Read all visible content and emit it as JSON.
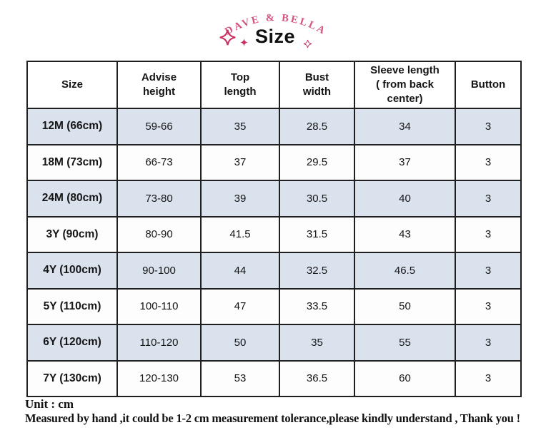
{
  "brand": {
    "name": "DAVE & BELLA"
  },
  "title": "Size",
  "icons": {
    "left_large": "sparkle-outline",
    "left_small": "sparkle-filled",
    "right_small": "sparkle-outline"
  },
  "colors": {
    "brand_pink": "#d6537f",
    "sparkle_pink": "#c9305f",
    "row_alt_blue": "#dae2ee",
    "border_dark": "#1f1f1f"
  },
  "table": {
    "columns": [
      "Size",
      "Advise\nheight",
      "Top\nlength",
      "Bust\nwidth",
      "Sleeve length\n( from back\ncenter)",
      "Button"
    ],
    "rows": [
      [
        "12M (66cm)",
        "59-66",
        "35",
        "28.5",
        "34",
        "3"
      ],
      [
        "18M (73cm)",
        "66-73",
        "37",
        "29.5",
        "37",
        "3"
      ],
      [
        "24M (80cm)",
        "73-80",
        "39",
        "30.5",
        "40",
        "3"
      ],
      [
        "3Y (90cm)",
        "80-90",
        "41.5",
        "31.5",
        "43",
        "3"
      ],
      [
        "4Y (100cm)",
        "90-100",
        "44",
        "32.5",
        "46.5",
        "3"
      ],
      [
        "5Y (110cm)",
        "100-110",
        "47",
        "33.5",
        "50",
        "3"
      ],
      [
        "6Y (120cm)",
        "110-120",
        "50",
        "35",
        "55",
        "3"
      ],
      [
        "7Y (130cm)",
        "120-130",
        "53",
        "36.5",
        "60",
        "3"
      ]
    ]
  },
  "footer": {
    "unit": "Unit : cm",
    "note": "Measured by hand ,it could be 1-2 cm measurement tolerance,please kindly understand , Thank you !"
  }
}
